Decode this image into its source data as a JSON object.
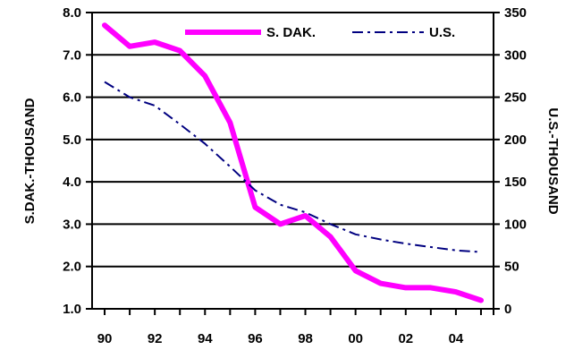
{
  "chart_data": {
    "type": "line",
    "title": "",
    "xlabel": "",
    "ylabel_left": "S.DAK.-THOUSAND",
    "ylabel_right": "U.S.-THOUSAND",
    "x": [
      1990,
      1991,
      1992,
      1993,
      1994,
      1995,
      1996,
      1997,
      1998,
      1999,
      2000,
      2001,
      2002,
      2003,
      2004,
      2005
    ],
    "x_tick_labels": [
      "90",
      "92",
      "94",
      "96",
      "98",
      "00",
      "02",
      "04"
    ],
    "ylim_left": [
      1.0,
      8.0
    ],
    "y_ticks_left": [
      "1.0",
      "2.0",
      "3.0",
      "4.0",
      "5.0",
      "6.0",
      "7.0",
      "8.0"
    ],
    "ylim_right": [
      0,
      350
    ],
    "y_ticks_right": [
      "0",
      "50",
      "100",
      "150",
      "200",
      "250",
      "300",
      "350"
    ],
    "grid": "horizontal",
    "legend_position": "top",
    "series": [
      {
        "name": "S. DAK.",
        "axis": "left",
        "color": "#ff00ff",
        "style": "solid",
        "values": [
          7.7,
          7.2,
          7.3,
          7.1,
          6.5,
          5.4,
          3.4,
          3.0,
          3.2,
          2.7,
          1.9,
          1.6,
          1.5,
          1.5,
          1.4,
          1.2
        ]
      },
      {
        "name": "U.S.",
        "axis": "right",
        "color": "#000080",
        "style": "dash-dot",
        "values": [
          268,
          250,
          240,
          218,
          195,
          168,
          140,
          123,
          114,
          100,
          88,
          82,
          77,
          73,
          69,
          67
        ]
      }
    ]
  }
}
